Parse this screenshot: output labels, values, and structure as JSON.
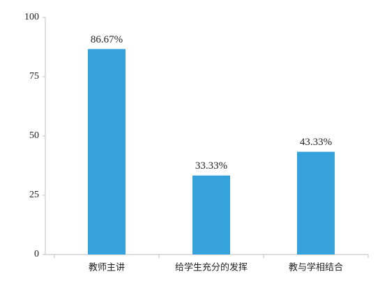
{
  "chart_data": {
    "type": "bar",
    "categories": [
      "教师主讲",
      "给学生充分的发挥",
      "教与学相结合"
    ],
    "values": [
      86.67,
      33.33,
      43.33
    ],
    "value_labels": [
      "86.67%",
      "33.33%",
      "43.33%"
    ],
    "color": "#35a2dc",
    "ylim": [
      0,
      100
    ],
    "yticks": [
      0,
      25,
      50,
      75,
      100
    ],
    "grid": false
  }
}
